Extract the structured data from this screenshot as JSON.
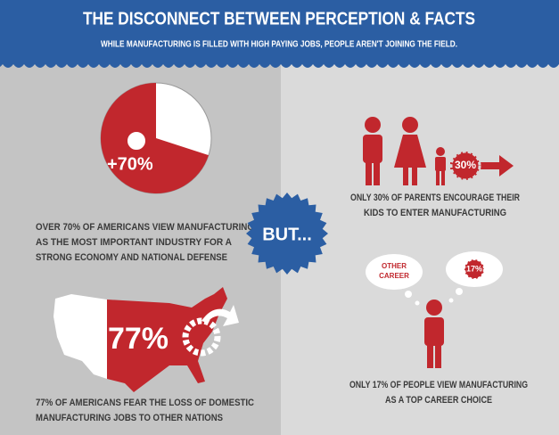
{
  "header": {
    "title": "THE DISCONNECT BETWEEN PERCEPTION & FACTS",
    "subtitle": "WHILE MANUFACTURING IS FILLED WITH HIGH PAYING JOBS, PEOPLE AREN'T JOINING THE FIELD."
  },
  "left": {
    "pie": {
      "value": 70,
      "label": "+70%"
    },
    "pie_text": [
      "OVER 70% OF AMERICANS VIEW MANUFACTURING",
      "AS THE MOST IMPORTANT INDUSTRY FOR A",
      "STRONG ECONOMY AND NATIONAL DEFENSE"
    ],
    "map_label": "77%",
    "map_text": [
      "77% OF AMERICANS FEAR THE LOSS OF DOMESTIC",
      "MANUFACTURING JOBS TO OTHER NATIONS"
    ]
  },
  "center": {
    "badge": "BUT..."
  },
  "right": {
    "family_badge": "30%",
    "family_text": [
      "ONLY 30% OF PARENTS ENCOURAGE THEIR",
      "KIDS TO ENTER MANUFACTURING"
    ],
    "bubble_left": [
      "OTHER",
      "CAREER"
    ],
    "bubble_right": "17%",
    "person_text": [
      "ONLY 17% OF PEOPLE VIEW MANUFACTURING",
      "AS A TOP CAREER CHOICE"
    ]
  }
}
